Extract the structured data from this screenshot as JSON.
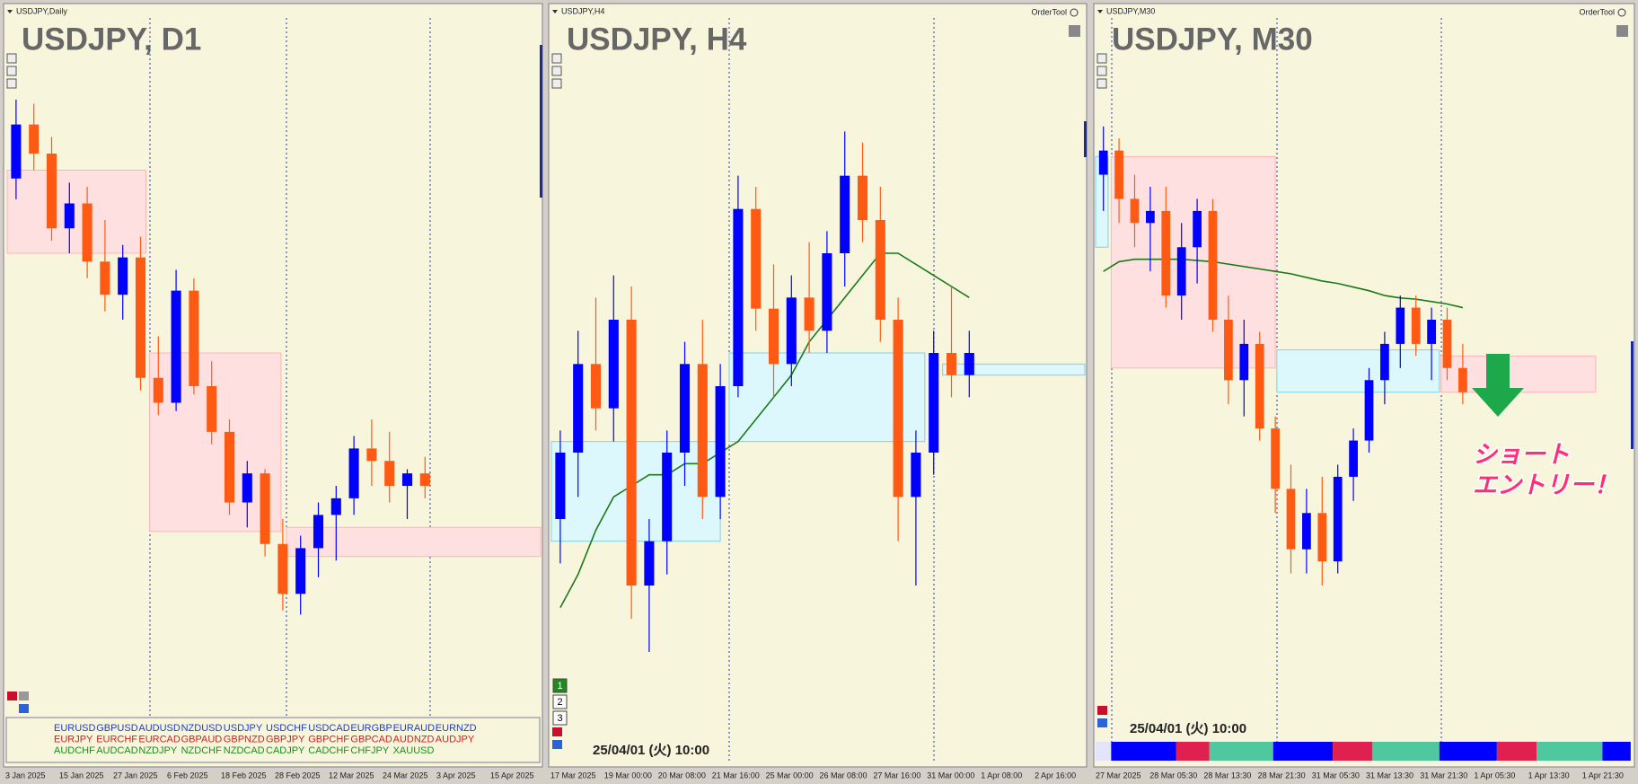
{
  "panels": [
    {
      "header": "USDJPY,Daily",
      "title": "USDJPY, D1",
      "ylim": [
        144,
        160
      ],
      "candles": [
        [
          157.0,
          158.9,
          156.5,
          158.3
        ],
        [
          158.3,
          158.8,
          157.2,
          157.6
        ],
        [
          157.6,
          158.0,
          155.5,
          155.8
        ],
        [
          155.8,
          156.9,
          155.2,
          156.4
        ],
        [
          156.4,
          156.8,
          154.6,
          155.0
        ],
        [
          155.0,
          156.0,
          153.8,
          154.2
        ],
        [
          154.2,
          155.4,
          153.6,
          155.1
        ],
        [
          155.1,
          155.6,
          151.9,
          152.2
        ],
        [
          152.2,
          153.2,
          151.3,
          151.6
        ],
        [
          151.6,
          154.8,
          151.4,
          154.3
        ],
        [
          154.3,
          154.6,
          151.8,
          152.0
        ],
        [
          152.0,
          152.6,
          150.6,
          150.9
        ],
        [
          150.9,
          151.2,
          148.9,
          149.2
        ],
        [
          149.2,
          150.2,
          148.6,
          149.9
        ],
        [
          149.9,
          150.0,
          147.9,
          148.2
        ],
        [
          148.2,
          148.8,
          146.6,
          147.0
        ],
        [
          147.0,
          148.4,
          146.5,
          148.1
        ],
        [
          148.1,
          149.2,
          147.4,
          148.9
        ],
        [
          148.9,
          149.6,
          147.8,
          149.3
        ],
        [
          149.3,
          150.8,
          148.9,
          150.5
        ],
        [
          150.5,
          151.2,
          149.6,
          150.2
        ],
        [
          150.2,
          150.9,
          149.2,
          149.6
        ],
        [
          149.6,
          150.0,
          148.8,
          149.9
        ],
        [
          149.9,
          150.3,
          149.3,
          149.6
        ]
      ],
      "zones": [
        {
          "from": 0,
          "to": 7.8,
          "top": 157.2,
          "bottom": 155.2,
          "color": "#ffe0e0",
          "border": "#ffb4b4"
        },
        {
          "from": 8,
          "to": 15.4,
          "top": 152.8,
          "bottom": 148.5,
          "color": "#ffe0e0",
          "border": "#ffb4b4"
        },
        {
          "from": 15.7,
          "to": 30,
          "top": 148.6,
          "bottom": 147.9,
          "color": "#ffe0e0",
          "border": "#ffb4b4"
        }
      ],
      "time_labels": [
        "3 Jan 2025",
        "15 Jan 2025",
        "27 Jan 2025",
        "6 Feb 2025",
        "18 Feb 2025",
        "28 Feb 2025",
        "12 Mar 2025",
        "24 Mar 2025",
        "3 Apr 2025",
        "15 Apr 2025"
      ]
    },
    {
      "header": "USDJPY,H4",
      "title": "USDJPY, H4",
      "order_tool": "OrderTool",
      "ylim": [
        146,
        152
      ],
      "candles": [
        [
          147.8,
          148.6,
          147.4,
          148.4
        ],
        [
          148.4,
          149.5,
          148.0,
          149.2
        ],
        [
          149.2,
          149.8,
          148.6,
          148.8
        ],
        [
          148.8,
          150.0,
          148.5,
          149.6
        ],
        [
          149.6,
          149.9,
          146.9,
          147.2
        ],
        [
          147.2,
          147.8,
          146.6,
          147.6
        ],
        [
          147.6,
          148.6,
          147.3,
          148.4
        ],
        [
          148.4,
          149.4,
          148.1,
          149.2
        ],
        [
          149.2,
          149.6,
          147.8,
          148.0
        ],
        [
          148.0,
          149.2,
          147.8,
          149.0
        ],
        [
          149.0,
          150.9,
          148.9,
          150.6
        ],
        [
          150.6,
          150.8,
          149.5,
          149.7
        ],
        [
          149.7,
          150.1,
          148.9,
          149.2
        ],
        [
          149.2,
          150.0,
          149.0,
          149.8
        ],
        [
          149.8,
          150.3,
          149.3,
          149.5
        ],
        [
          149.5,
          150.4,
          149.3,
          150.2
        ],
        [
          150.2,
          151.3,
          149.9,
          150.9
        ],
        [
          150.9,
          151.2,
          150.3,
          150.5
        ],
        [
          150.5,
          150.8,
          149.4,
          149.6
        ],
        [
          149.6,
          149.8,
          147.6,
          148.0
        ],
        [
          148.0,
          148.6,
          147.2,
          148.4
        ],
        [
          148.4,
          149.5,
          148.2,
          149.3
        ],
        [
          149.3,
          149.9,
          148.9,
          149.1
        ],
        [
          149.1,
          149.5,
          148.9,
          149.3
        ]
      ],
      "ma": [
        147.0,
        147.3,
        147.7,
        148.0,
        148.1,
        148.2,
        148.2,
        148.3,
        148.3,
        148.4,
        148.5,
        148.7,
        148.9,
        149.1,
        149.4,
        149.6,
        149.8,
        150.0,
        150.2,
        150.2,
        150.1,
        150.0,
        149.9,
        149.8
      ],
      "zones": [
        {
          "from": 0,
          "to": 9.5,
          "top": 148.5,
          "bottom": 147.6,
          "color": "#dcf8fc",
          "border": "#80d0e0"
        },
        {
          "from": 10,
          "to": 21,
          "top": 149.3,
          "bottom": 148.5,
          "color": "#dcf8fc",
          "border": "#80d0e0"
        },
        {
          "from": 22,
          "to": 30,
          "top": 149.2,
          "bottom": 149.1,
          "color": "#dcf8fc",
          "border": "#80d0e0"
        }
      ],
      "time_labels": [
        "17 Mar 2025",
        "19 Mar 00:00",
        "20 Mar 08:00",
        "21 Mar 16:00",
        "25 Mar 00:00",
        "26 Mar 08:00",
        "27 Mar 16:00",
        "31 Mar 00:00",
        "1 Apr 08:00",
        "2 Apr 16:00"
      ],
      "buttons": [
        "1",
        "2",
        "3"
      ],
      "timestamp": "25/04/01 (火) 10:00"
    },
    {
      "header": "USDJPY,M30",
      "title": "USDJPY, M30",
      "order_tool": "OrderTool",
      "ylim": [
        145.5,
        151
      ],
      "candles": [
        [
          150.0,
          150.4,
          149.7,
          150.2
        ],
        [
          150.2,
          150.3,
          149.6,
          149.8
        ],
        [
          149.8,
          150.0,
          149.4,
          149.6
        ],
        [
          149.6,
          149.9,
          149.2,
          149.7
        ],
        [
          149.7,
          149.9,
          148.9,
          149.0
        ],
        [
          149.0,
          149.6,
          148.8,
          149.4
        ],
        [
          149.4,
          149.8,
          149.1,
          149.7
        ],
        [
          149.7,
          149.8,
          148.7,
          148.8
        ],
        [
          148.8,
          149.0,
          148.1,
          148.3
        ],
        [
          148.3,
          148.8,
          148.0,
          148.6
        ],
        [
          148.6,
          148.7,
          147.8,
          147.9
        ],
        [
          147.9,
          148.0,
          147.2,
          147.4
        ],
        [
          147.4,
          147.6,
          146.7,
          146.9
        ],
        [
          146.9,
          147.4,
          146.7,
          147.2
        ],
        [
          147.2,
          147.5,
          146.6,
          146.8
        ],
        [
          146.8,
          147.6,
          146.7,
          147.5
        ],
        [
          147.5,
          147.9,
          147.3,
          147.8
        ],
        [
          147.8,
          148.4,
          147.7,
          148.3
        ],
        [
          148.3,
          148.7,
          148.1,
          148.6
        ],
        [
          148.6,
          149.0,
          148.4,
          148.9
        ],
        [
          148.9,
          149.0,
          148.5,
          148.6
        ],
        [
          148.6,
          148.9,
          148.3,
          148.8
        ],
        [
          148.8,
          148.9,
          148.3,
          148.4
        ],
        [
          148.4,
          148.6,
          148.1,
          148.2
        ]
      ],
      "ma": [
        149.2,
        149.28,
        149.3,
        149.3,
        149.3,
        149.3,
        149.29,
        149.28,
        149.26,
        149.24,
        149.22,
        149.2,
        149.18,
        149.15,
        149.12,
        149.1,
        149.07,
        149.04,
        149.0,
        148.98,
        148.97,
        148.95,
        148.93,
        148.9
      ],
      "zones": [
        {
          "from": 0,
          "to": 0.8,
          "top": 150.15,
          "bottom": 149.4,
          "color": "#dcf8fc",
          "border": "#80d0e0"
        },
        {
          "from": 1,
          "to": 11.5,
          "top": 150.15,
          "bottom": 148.4,
          "color": "#ffe0e0",
          "border": "#ffb4b4"
        },
        {
          "from": 11.6,
          "to": 22,
          "top": 148.55,
          "bottom": 148.2,
          "color": "#dcf8fc",
          "border": "#80d0e0"
        },
        {
          "from": 22.1,
          "to": 32,
          "top": 148.5,
          "bottom": 148.2,
          "color": "#ffe0e0",
          "border": "#ffb4b4"
        }
      ],
      "time_labels": [
        "27 Mar 2025",
        "28 Mar 05:30",
        "28 Mar 13:30",
        "28 Mar 21:30",
        "31 Mar 05:30",
        "31 Mar 13:30",
        "31 Mar 21:30",
        "1 Apr 05:30",
        "1 Apr 13:30",
        "1 Apr 21:30"
      ],
      "timestamp": "25/04/01 (火) 10:00",
      "annotation": [
        "ショート",
        "エントリー！"
      ]
    }
  ],
  "bull_color": "#0000ff",
  "bear_color": "#ff5a14",
  "ma_color": "#1a7a1a",
  "symbols": [
    [
      "EURUSD",
      "GBPUSD",
      "AUDUSD",
      "NZDUSD",
      "USDJPY",
      "USDCHF",
      "USDCAD",
      "EURGBP",
      "EURAUD",
      "EURNZD"
    ],
    [
      "EURJPY",
      "EURCHF",
      "EURCAD",
      "GBPAUD",
      "GBPNZD",
      "GBPJPY",
      "GBPCHF",
      "GBPCAD",
      "AUDNZD",
      "AUDJPY"
    ],
    [
      "AUDCHF",
      "AUDCAD",
      "NZDJPY",
      "NZDCHF",
      "NZDCAD",
      "CADJPY",
      "CADCHF",
      "CHFJPY",
      "XAUUSD"
    ]
  ],
  "symbol_colors": [
    "#1e3cc8",
    "#d21e1e",
    "#1e8c1e"
  ]
}
